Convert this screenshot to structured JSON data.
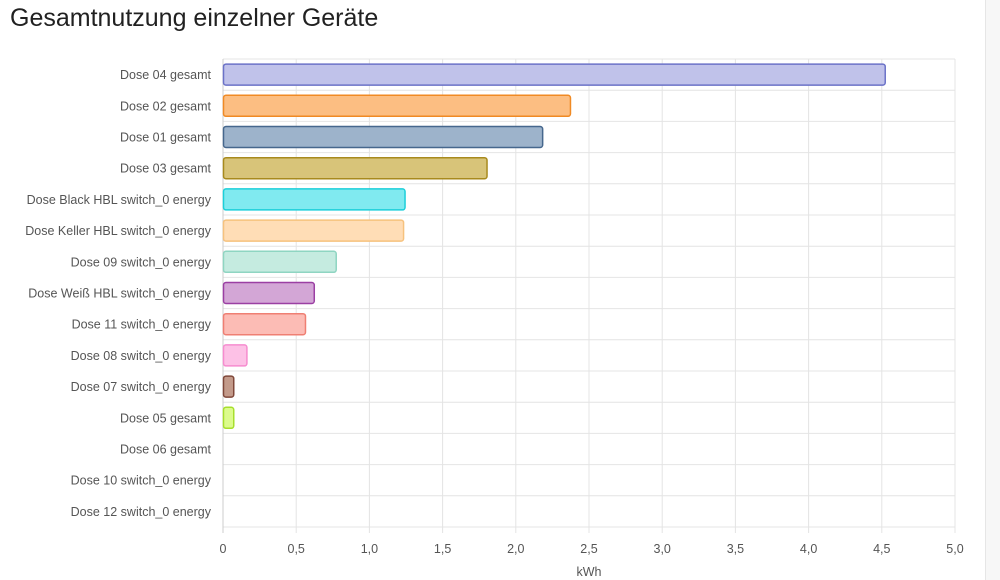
{
  "chart_data": {
    "type": "bar",
    "orientation": "horizontal",
    "title": "Gesamtnutzung einzelner Geräte",
    "xlabel": "kWh",
    "ylabel": "",
    "xlim": [
      0,
      5
    ],
    "x_ticks": [
      "0",
      "0,5",
      "1,0",
      "1,5",
      "2,0",
      "2,5",
      "3,0",
      "3,5",
      "4,0",
      "4,5",
      "5,0"
    ],
    "grid": true,
    "legend": "none",
    "categories": [
      "Dose 04  gesamt",
      "Dose 02  gesamt",
      "Dose 01  gesamt",
      "Dose 03  gesamt",
      "Dose Black HBL switch_0 energy",
      "Dose Keller HBL switch_0 energy",
      "Dose 09 switch_0 energy",
      "Dose Weiß HBL switch_0 energy",
      "Dose 11 switch_0 energy",
      "Dose 08 switch_0 energy",
      "Dose 07 switch_0 energy",
      "Dose 05  gesamt",
      "Dose 06 gesamt",
      "Dose 10 switch_0 energy",
      "Dose 12 switch_0 energy"
    ],
    "values": [
      4.52,
      2.37,
      2.18,
      1.8,
      1.24,
      1.23,
      0.77,
      0.62,
      0.56,
      0.16,
      0.07,
      0.07,
      0,
      0,
      0
    ],
    "bar_colors": [
      {
        "fill": "#c0c2ea",
        "stroke": "#6b72c8"
      },
      {
        "fill": "#fcbe82",
        "stroke": "#f08a24"
      },
      {
        "fill": "#9db3cb",
        "stroke": "#46678d"
      },
      {
        "fill": "#d8c479",
        "stroke": "#a88a1d"
      },
      {
        "fill": "#80eaf0",
        "stroke": "#1ccfd9"
      },
      {
        "fill": "#ffddb6",
        "stroke": "#f6c27e"
      },
      {
        "fill": "#c5ebe0",
        "stroke": "#8fd5c2"
      },
      {
        "fill": "#d3a6d6",
        "stroke": "#9b3fa3"
      },
      {
        "fill": "#fcbcb5",
        "stroke": "#ef7f73"
      },
      {
        "fill": "#fdc1e6",
        "stroke": "#f68ccf"
      },
      {
        "fill": "#c39a8a",
        "stroke": "#80483a"
      },
      {
        "fill": "#dcfb8c",
        "stroke": "#a7df2c"
      },
      {
        "fill": "#dddddd",
        "stroke": "#bbbbbb"
      },
      {
        "fill": "#dddddd",
        "stroke": "#bbbbbb"
      },
      {
        "fill": "#dddddd",
        "stroke": "#bbbbbb"
      }
    ],
    "grid_color": "#e4e4e4",
    "axis_color": "#cccccc"
  }
}
